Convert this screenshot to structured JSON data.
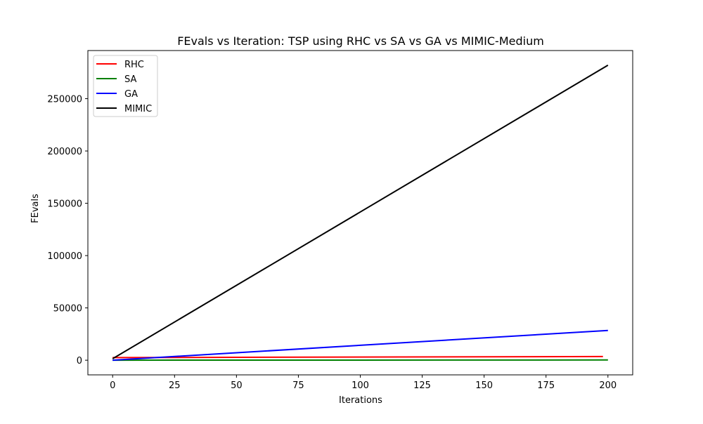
{
  "chart_data": {
    "type": "line",
    "title": "FEvals vs Iteration: TSP using RHC vs SA vs GA vs MIMIC-Medium",
    "xlabel": "Iterations",
    "ylabel": "FEvals",
    "xlim": [
      -10,
      210
    ],
    "ylim": [
      -14000,
      296000
    ],
    "xticks": [
      0,
      25,
      50,
      75,
      100,
      125,
      150,
      175,
      200
    ],
    "yticks": [
      0,
      50000,
      100000,
      150000,
      200000,
      250000
    ],
    "grid": false,
    "legend_position": "upper-left",
    "series": [
      {
        "name": "RHC",
        "color": "#ff0000",
        "x": [
          0,
          198
        ],
        "y": [
          2500,
          3500
        ]
      },
      {
        "name": "SA",
        "color": "#008000",
        "x": [
          0,
          200
        ],
        "y": [
          50,
          250
        ]
      },
      {
        "name": "GA",
        "color": "#0000ff",
        "x": [
          0,
          200
        ],
        "y": [
          0,
          28500
        ]
      },
      {
        "name": "MIMIC",
        "color": "#000000",
        "x": [
          0,
          200
        ],
        "y": [
          1400,
          282000
        ]
      }
    ]
  }
}
